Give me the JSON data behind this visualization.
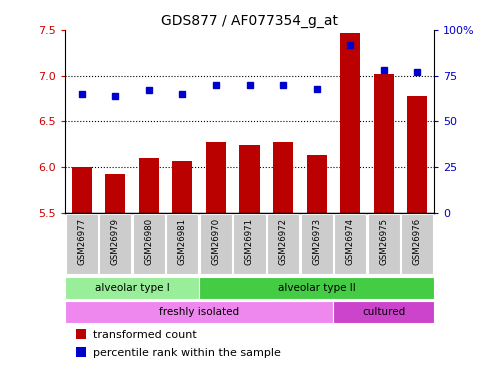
{
  "title": "GDS877 / AF077354_g_at",
  "samples": [
    "GSM26977",
    "GSM26979",
    "GSM26980",
    "GSM26981",
    "GSM26970",
    "GSM26971",
    "GSM26972",
    "GSM26973",
    "GSM26974",
    "GSM26975",
    "GSM26976"
  ],
  "transformed_count": [
    6.0,
    5.92,
    6.1,
    6.07,
    6.27,
    6.24,
    6.27,
    6.13,
    7.47,
    7.02,
    6.78
  ],
  "percentile_rank": [
    65,
    64,
    67,
    65,
    70,
    70,
    70,
    68,
    92,
    78,
    77
  ],
  "ylim_left": [
    5.5,
    7.5
  ],
  "ylim_right": [
    0,
    100
  ],
  "yticks_left": [
    5.5,
    6.0,
    6.5,
    7.0,
    7.5
  ],
  "yticks_right": [
    0,
    25,
    50,
    75,
    100
  ],
  "bar_color": "#bb0000",
  "dot_color": "#0000cc",
  "cell_type_groups": [
    {
      "label": "alveolar type I",
      "start": 0,
      "end": 4,
      "color": "#99ee99"
    },
    {
      "label": "alveolar type II",
      "start": 4,
      "end": 11,
      "color": "#44cc44"
    }
  ],
  "protocol_groups": [
    {
      "label": "freshly isolated",
      "start": 0,
      "end": 8,
      "color": "#ee88ee"
    },
    {
      "label": "cultured",
      "start": 8,
      "end": 11,
      "color": "#cc44cc"
    }
  ],
  "legend_items": [
    {
      "label": "transformed count",
      "color": "#bb0000"
    },
    {
      "label": "percentile rank within the sample",
      "color": "#0000cc"
    }
  ],
  "tick_color_left": "#cc0000",
  "tick_color_right": "#0000cc",
  "grid_lines_at": [
    6.0,
    6.5,
    7.0
  ],
  "bar_bottom": 5.5,
  "sample_box_color": "#cccccc",
  "label_fontsize": 7.5,
  "title_fontsize": 10,
  "ytick_fontsize": 8
}
